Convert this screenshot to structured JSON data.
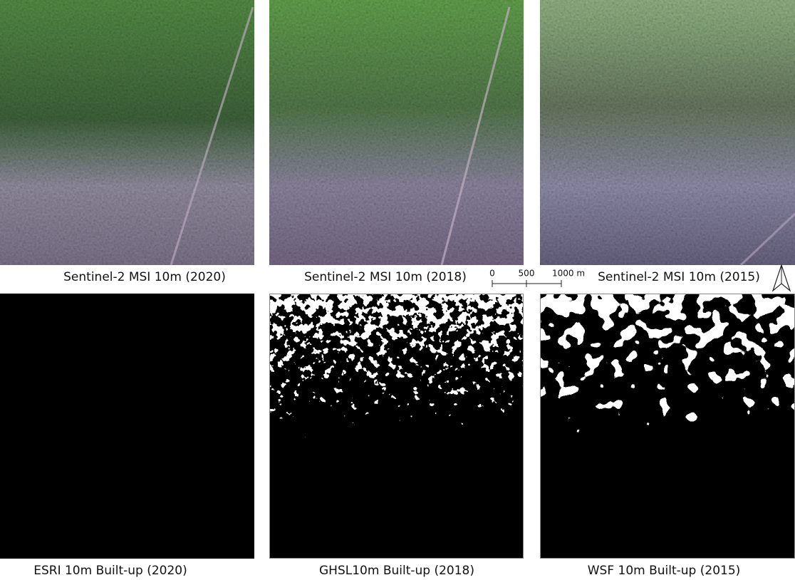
{
  "panels": [
    {
      "caption": "Sentinel-2 MSI 10m (2020)"
    },
    {
      "caption": "Sentinel-2 MSI 10m (2018)"
    },
    {
      "caption": "Sentinel-2 MSI 10m (2015)"
    },
    {
      "caption": "ESRI 10m Built-up (2020)"
    },
    {
      "caption": "GHSL10m Built-up (2018)"
    },
    {
      "caption": "WSF 10m Built-up (2015)"
    }
  ],
  "scale_bar": {
    "labels": [
      "0",
      "500",
      "1000 m"
    ]
  }
}
